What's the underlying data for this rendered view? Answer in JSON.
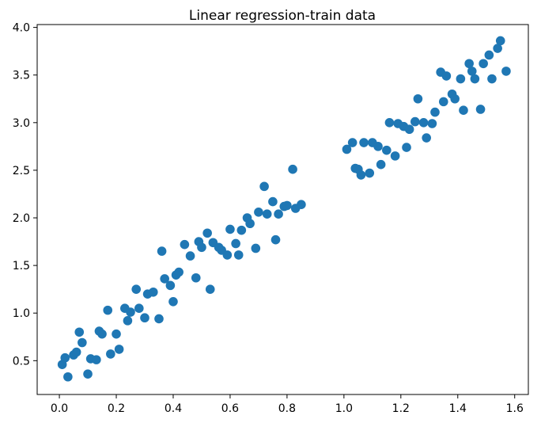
{
  "chart_data": {
    "type": "scatter",
    "title": "Linear regression-train data",
    "xlabel": "",
    "ylabel": "",
    "xlim": [
      -0.078,
      1.648
    ],
    "ylim": [
      0.145,
      4.03
    ],
    "xticks": [
      {
        "value": 0.0,
        "label": "0.0"
      },
      {
        "value": 0.2,
        "label": "0.2"
      },
      {
        "value": 0.4,
        "label": "0.4"
      },
      {
        "value": 0.6,
        "label": "0.6"
      },
      {
        "value": 0.8,
        "label": "0.8"
      },
      {
        "value": 1.0,
        "label": "1.0"
      },
      {
        "value": 1.2,
        "label": "1.2"
      },
      {
        "value": 1.4,
        "label": "1.4"
      },
      {
        "value": 1.6,
        "label": "1.6"
      }
    ],
    "yticks": [
      {
        "value": 0.5,
        "label": "0.5"
      },
      {
        "value": 1.0,
        "label": "1.0"
      },
      {
        "value": 1.5,
        "label": "1.5"
      },
      {
        "value": 2.0,
        "label": "2.0"
      },
      {
        "value": 2.5,
        "label": "2.5"
      },
      {
        "value": 3.0,
        "label": "3.0"
      },
      {
        "value": 3.5,
        "label": "3.5"
      },
      {
        "value": 4.0,
        "label": "4.0"
      }
    ],
    "grid": false,
    "legend": "none",
    "marker_color": "#1f77b4",
    "points": [
      [
        0.01,
        0.46
      ],
      [
        0.02,
        0.53
      ],
      [
        0.03,
        0.33
      ],
      [
        0.05,
        0.56
      ],
      [
        0.06,
        0.59
      ],
      [
        0.07,
        0.8
      ],
      [
        0.08,
        0.69
      ],
      [
        0.1,
        0.36
      ],
      [
        0.11,
        0.52
      ],
      [
        0.13,
        0.51
      ],
      [
        0.14,
        0.81
      ],
      [
        0.15,
        0.78
      ],
      [
        0.17,
        1.03
      ],
      [
        0.18,
        0.57
      ],
      [
        0.2,
        0.78
      ],
      [
        0.21,
        0.62
      ],
      [
        0.23,
        1.05
      ],
      [
        0.24,
        0.92
      ],
      [
        0.25,
        1.01
      ],
      [
        0.27,
        1.25
      ],
      [
        0.28,
        1.05
      ],
      [
        0.3,
        0.95
      ],
      [
        0.31,
        1.2
      ],
      [
        0.33,
        1.22
      ],
      [
        0.35,
        0.94
      ],
      [
        0.36,
        1.65
      ],
      [
        0.37,
        1.36
      ],
      [
        0.39,
        1.29
      ],
      [
        0.4,
        1.12
      ],
      [
        0.41,
        1.4
      ],
      [
        0.42,
        1.43
      ],
      [
        0.44,
        1.72
      ],
      [
        0.46,
        1.6
      ],
      [
        0.48,
        1.37
      ],
      [
        0.49,
        1.75
      ],
      [
        0.5,
        1.69
      ],
      [
        0.52,
        1.84
      ],
      [
        0.53,
        1.25
      ],
      [
        0.54,
        1.74
      ],
      [
        0.56,
        1.69
      ],
      [
        0.57,
        1.66
      ],
      [
        0.59,
        1.61
      ],
      [
        0.6,
        1.88
      ],
      [
        0.62,
        1.73
      ],
      [
        0.63,
        1.61
      ],
      [
        0.64,
        1.87
      ],
      [
        0.66,
        2.0
      ],
      [
        0.67,
        1.94
      ],
      [
        0.69,
        1.68
      ],
      [
        0.7,
        2.06
      ],
      [
        0.72,
        2.33
      ],
      [
        0.73,
        2.04
      ],
      [
        0.75,
        2.17
      ],
      [
        0.76,
        1.77
      ],
      [
        0.77,
        2.04
      ],
      [
        0.79,
        2.12
      ],
      [
        0.8,
        2.13
      ],
      [
        0.82,
        2.51
      ],
      [
        0.83,
        2.1
      ],
      [
        0.85,
        2.14
      ],
      [
        1.01,
        2.72
      ],
      [
        1.03,
        2.79
      ],
      [
        1.04,
        2.52
      ],
      [
        1.05,
        2.51
      ],
      [
        1.06,
        2.45
      ],
      [
        1.07,
        2.79
      ],
      [
        1.09,
        2.47
      ],
      [
        1.1,
        2.79
      ],
      [
        1.12,
        2.75
      ],
      [
        1.13,
        2.56
      ],
      [
        1.15,
        2.71
      ],
      [
        1.16,
        3.0
      ],
      [
        1.18,
        2.65
      ],
      [
        1.19,
        2.99
      ],
      [
        1.21,
        2.96
      ],
      [
        1.22,
        2.74
      ],
      [
        1.23,
        2.93
      ],
      [
        1.25,
        3.01
      ],
      [
        1.26,
        3.25
      ],
      [
        1.28,
        3.0
      ],
      [
        1.29,
        2.84
      ],
      [
        1.31,
        2.99
      ],
      [
        1.32,
        3.11
      ],
      [
        1.34,
        3.53
      ],
      [
        1.35,
        3.22
      ],
      [
        1.36,
        3.49
      ],
      [
        1.38,
        3.3
      ],
      [
        1.39,
        3.25
      ],
      [
        1.41,
        3.46
      ],
      [
        1.42,
        3.13
      ],
      [
        1.44,
        3.62
      ],
      [
        1.45,
        3.54
      ],
      [
        1.46,
        3.46
      ],
      [
        1.48,
        3.14
      ],
      [
        1.49,
        3.62
      ],
      [
        1.51,
        3.71
      ],
      [
        1.52,
        3.46
      ],
      [
        1.54,
        3.78
      ],
      [
        1.55,
        3.86
      ],
      [
        1.57,
        3.54
      ]
    ]
  }
}
